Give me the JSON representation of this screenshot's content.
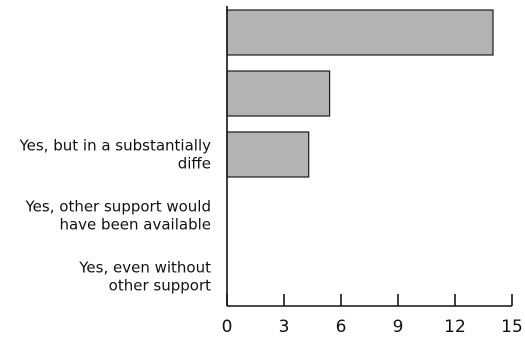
{
  "chart_data": {
    "type": "bar",
    "orientation": "horizontal",
    "categories": [
      [],
      [],
      [
        "Yes, but in a substantially",
        "diffe"
      ],
      [
        "Yes, other support would",
        "have been available"
      ],
      [
        "Yes, even without",
        "other support"
      ]
    ],
    "values": [
      14,
      5.4,
      4.3,
      0,
      0
    ],
    "xlim": [
      0,
      15
    ],
    "xticks": [
      0,
      3,
      6,
      9,
      12,
      15
    ],
    "title": "",
    "xlabel": "",
    "ylabel": "",
    "grid": false,
    "colors": {
      "bar_fill": "#b3b3b3",
      "bar_stroke": "#1a1a1a",
      "axis": "#111111"
    }
  }
}
